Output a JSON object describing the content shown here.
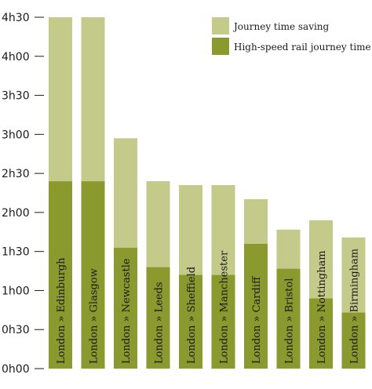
{
  "chart_data": {
    "type": "bar",
    "stacked": true,
    "unit": "hours",
    "categories": [
      "London » Edinburgh",
      "London » Glasgow",
      "London » Newcastle",
      "London » Leeds",
      "London » Sheffield",
      "London » Manchester",
      "London » Cardiff",
      "London » Bristol",
      "London » Nottingham",
      "London » Birmingham"
    ],
    "series": [
      {
        "name": "High-speed rail journey time",
        "color": "#8a9a2e",
        "values": [
          2.4,
          2.4,
          1.55,
          1.3,
          1.2,
          1.2,
          1.6,
          1.28,
          0.9,
          0.72
        ]
      },
      {
        "name": "Journey time saving",
        "color": "#c4ca8a",
        "values": [
          2.1,
          2.1,
          1.4,
          1.1,
          1.15,
          1.15,
          0.57,
          0.5,
          1.0,
          0.96
        ]
      }
    ],
    "yticks": [
      "0h00",
      "0h30",
      "1h00",
      "1h30",
      "2h00",
      "2h30",
      "3h00",
      "3h30",
      "4h00",
      "4h30"
    ],
    "ylim": [
      0,
      4.5
    ],
    "legend_position": "top-right",
    "grid": false
  }
}
